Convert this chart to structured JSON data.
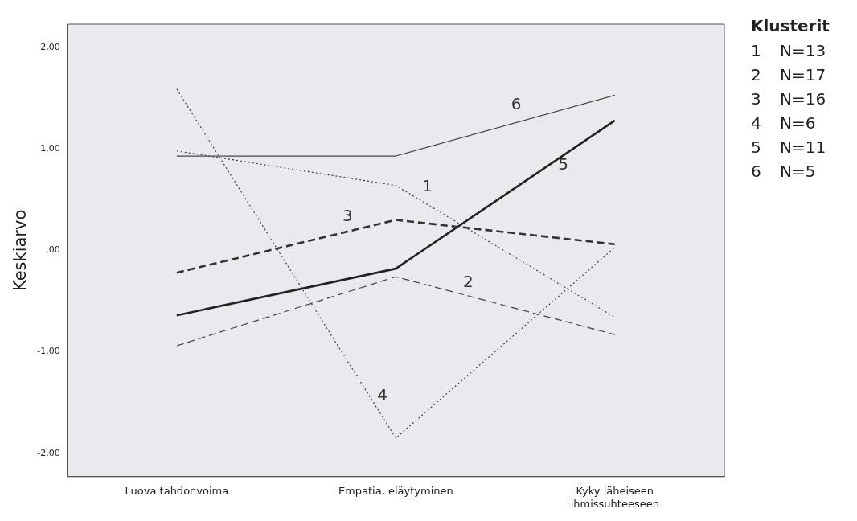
{
  "chart_data": {
    "type": "line",
    "ylabel": "Keskiarvo",
    "legend_title": "Klusterit",
    "legend": "top right",
    "grid": false,
    "marker": "none",
    "categories": [
      "Luova tahdonvoima",
      "Empatia, eläytyminen",
      "Kyky läheiseen ihmissuhteeseen"
    ],
    "ylim": [
      -2.23,
      2.23
    ],
    "yticks": [
      {
        "value": 2,
        "label": "2,00"
      },
      {
        "value": 1,
        "label": "1,00"
      },
      {
        "value": 0,
        "label": ",00"
      },
      {
        "value": -1,
        "label": "-1,00"
      },
      {
        "value": -2,
        "label": "-2,00"
      }
    ],
    "series": [
      {
        "name": "1",
        "color": "#444444",
        "line_style": "dotted",
        "values": [
          0.98,
          0.64,
          -0.66
        ]
      },
      {
        "name": "2",
        "color": "#444444",
        "line_style": "dashed",
        "values": [
          -0.94,
          -0.26,
          -0.83
        ]
      },
      {
        "name": "3",
        "color": "#333333",
        "line_style": "dashed",
        "values": [
          -0.22,
          0.3,
          0.06
        ]
      },
      {
        "name": "4",
        "color": "#444444",
        "line_style": "dotted",
        "values": [
          1.59,
          -1.85,
          0.03
        ]
      },
      {
        "name": "5",
        "color": "#222222",
        "line_style": "solid",
        "values": [
          -0.64,
          -0.18,
          1.28
        ]
      },
      {
        "name": "6",
        "color": "#444444",
        "line_style": "solid",
        "values": [
          0.93,
          0.93,
          1.53
        ]
      }
    ],
    "annotations": [
      "N=13",
      "N=17",
      "N=16",
      "N=6",
      "N=11",
      "N=5"
    ]
  }
}
